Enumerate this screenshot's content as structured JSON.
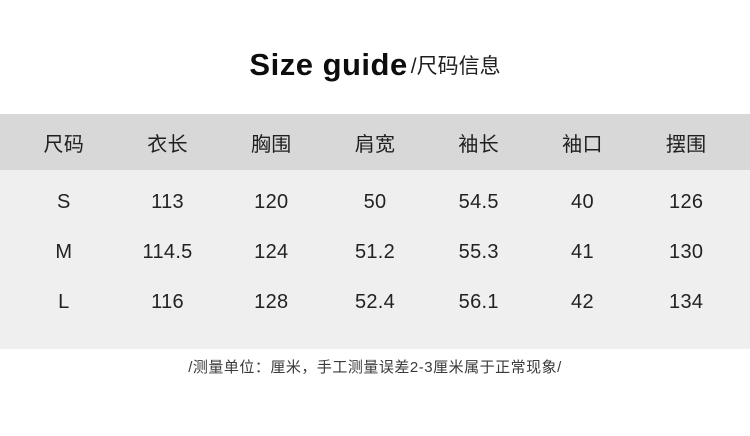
{
  "header": {
    "title_en": "Size guide",
    "title_cn": "/尺码信息"
  },
  "chart_data": {
    "type": "table",
    "title": "Size guide/尺码信息",
    "columns": [
      "尺码",
      "衣长",
      "胸围",
      "肩宽",
      "袖长",
      "袖口",
      "摆围"
    ],
    "rows": [
      [
        "S",
        "113",
        "120",
        "50",
        "54.5",
        "40",
        "126"
      ],
      [
        "M",
        "114.5",
        "124",
        "51.2",
        "55.3",
        "41",
        "130"
      ],
      [
        "L",
        "116",
        "128",
        "52.4",
        "56.1",
        "42",
        "134"
      ]
    ],
    "unit_note": "/测量单位：厘米，手工测量误差2-3厘米属于正常现象/"
  },
  "footer": {
    "note": "/测量单位：厘米，手工测量误差2-3厘米属于正常现象/"
  },
  "colors": {
    "header_row_bg": "#d8d8d8",
    "body_rows_bg": "#efefef",
    "page_bg": "#ffffff",
    "text": "#1a1a1a"
  }
}
